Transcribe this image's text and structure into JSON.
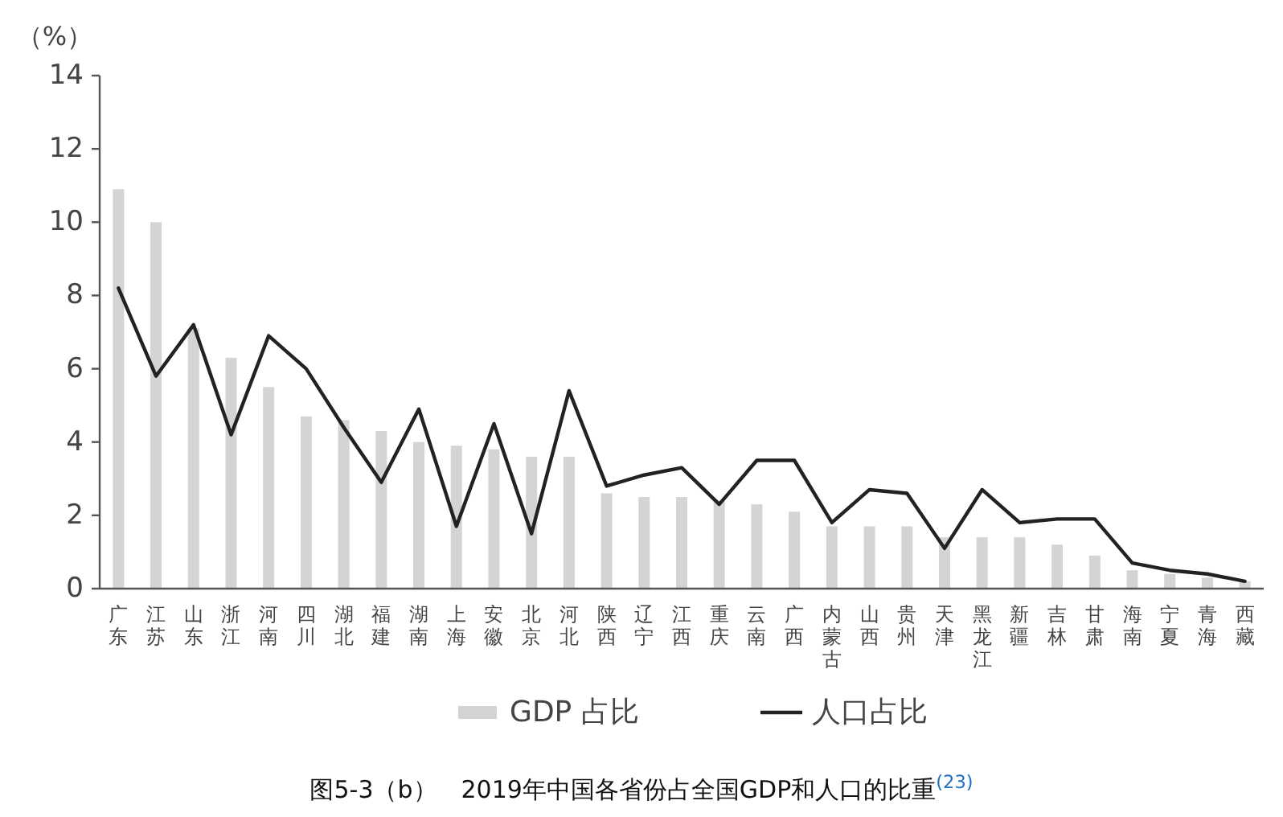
{
  "chart_data": {
    "type": "bar",
    "title": "图5-3（b）　2019年中国各省份占全国GDP和人口的比重$^{(23)}$",
    "ylabel": "（%）",
    "categories": [
      "广东",
      "江苏",
      "山东",
      "浙江",
      "河南",
      "四川",
      "湖北",
      "福建",
      "湖南",
      "上海",
      "安徽",
      "北京",
      "河北",
      "陕西",
      "辽宁",
      "江西",
      "重庆",
      "云南",
      "广西",
      "内蒙古",
      "山西",
      "贵州",
      "天津",
      "黑龙江",
      "新疆",
      "吉林",
      "甘肃",
      "海南",
      "宁夏",
      "青海",
      "西藏"
    ],
    "series": [
      {
        "name": "GDP 占比",
        "color": "#d4d4d4",
        "values": [
          10.9,
          10.0,
          7.1,
          6.3,
          5.5,
          4.7,
          4.6,
          4.3,
          4.0,
          3.9,
          3.8,
          3.6,
          3.6,
          2.6,
          2.5,
          2.5,
          2.4,
          2.3,
          2.1,
          1.7,
          1.7,
          1.7,
          1.4,
          1.4,
          1.4,
          1.2,
          0.9,
          0.5,
          0.4,
          0.3,
          0.2
        ]
      },
      {
        "name": "人口占比",
        "type": "line",
        "color": "#222222",
        "values": [
          8.2,
          5.8,
          7.2,
          4.2,
          6.9,
          6.0,
          4.4,
          2.9,
          4.9,
          1.7,
          4.5,
          1.5,
          5.4,
          2.8,
          3.1,
          3.3,
          2.3,
          3.5,
          3.5,
          1.8,
          2.7,
          2.6,
          1.1,
          2.7,
          1.8,
          1.9,
          1.9,
          0.7,
          0.5,
          0.4,
          0.2
        ]
      }
    ],
    "ylim": [
      0,
      14
    ],
    "yticks": [
      0,
      2,
      4,
      6,
      8,
      10,
      12,
      14
    ],
    "grid": false,
    "legend": "bottom",
    "marker": "none",
    "line_style": "solid"
  }
}
